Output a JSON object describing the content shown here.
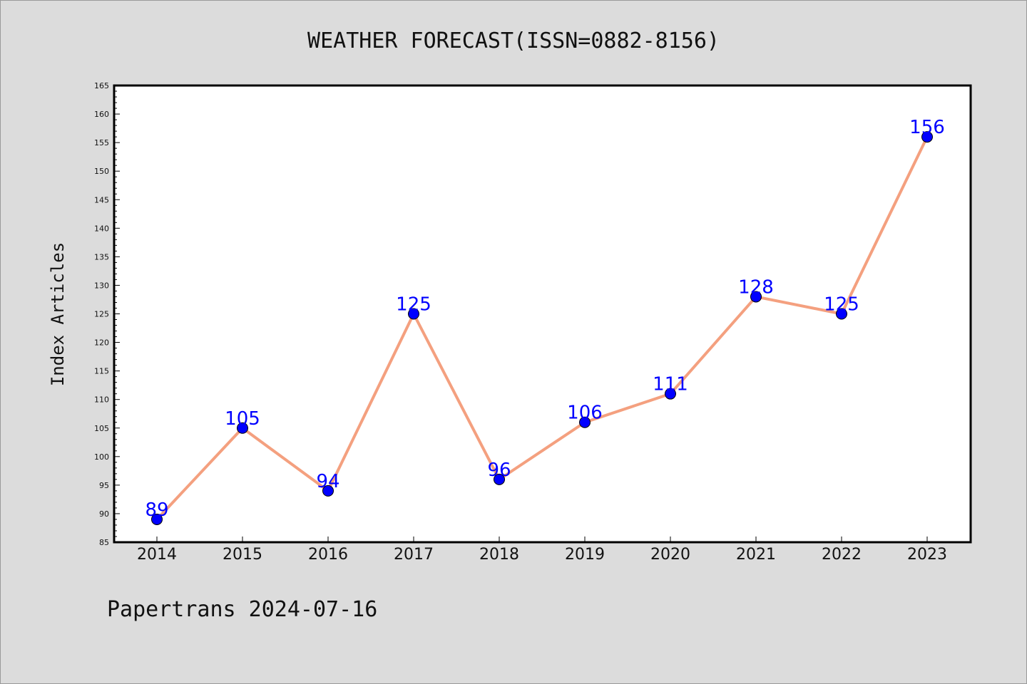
{
  "chart_data": {
    "type": "line",
    "title": "WEATHER FORECAST(ISSN=0882-8156)",
    "xlabel": "",
    "ylabel": "Index Articles",
    "footer": "Papertrans 2024-07-16",
    "categories": [
      "2014",
      "2015",
      "2016",
      "2017",
      "2018",
      "2019",
      "2020",
      "2021",
      "2022",
      "2023"
    ],
    "series": [
      {
        "values": [
          89,
          105,
          94,
          125,
          96,
          106,
          111,
          128,
          125,
          156
        ],
        "line_color": "#f4a07f",
        "marker_color": "#0000ff",
        "label_color": "#0000ff"
      }
    ],
    "ylim": [
      85,
      165
    ],
    "yticks": [
      85,
      90,
      95,
      100,
      105,
      110,
      115,
      120,
      125,
      130,
      135,
      140,
      145,
      150,
      155,
      160,
      165
    ],
    "grid": false,
    "legend": "none",
    "data_labels": true
  }
}
